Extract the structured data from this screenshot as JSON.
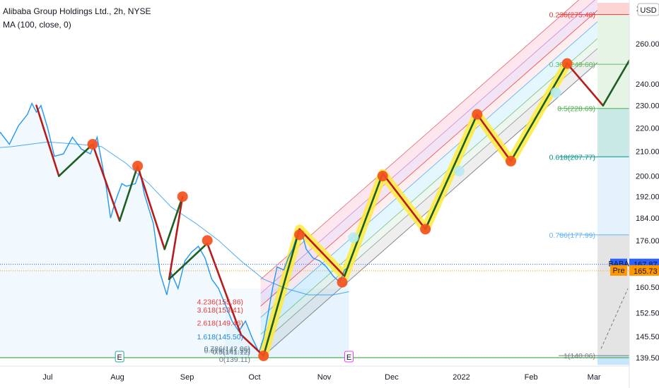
{
  "header": {
    "symbol_line": "Alibaba Group Holdings Ltd., 2h, NYSE",
    "indicator_line": "MA (100, close, 0)"
  },
  "currency_badge": "USD",
  "colors": {
    "price_line": "#2196f3",
    "ma_line": "#2196f3",
    "impulse_up": "#1b5e20",
    "impulse_down": "#b71c1c",
    "pivot_marker": "#f4511e",
    "highlight": "#ffeb3b",
    "last_price_bg": "#2962ff",
    "premarket_bg": "#ff9800",
    "baseline": "#4caf50"
  },
  "chart_data": {
    "type": "line",
    "title": "Alibaba Group Holdings Ltd., 2h, NYSE",
    "y_scale": "log",
    "ylim": [
      137.5,
      282
    ],
    "x_ticks": [
      "Jul",
      "Aug",
      "Sep",
      "Oct",
      "Nov",
      "Dec",
      "2022",
      "Feb",
      "Mar"
    ],
    "y_ticks": [
      139.5,
      145.5,
      152.5,
      160.5,
      168.0,
      176.0,
      184.0,
      192.0,
      200.0,
      210.0,
      220.0,
      230.0,
      240.0,
      260.0
    ],
    "price_series": [
      {
        "d": "2021-06-01",
        "v": 216
      },
      {
        "d": "2021-06-05",
        "v": 214
      },
      {
        "d": "2021-06-10",
        "v": 218
      },
      {
        "d": "2021-06-14",
        "v": 213
      },
      {
        "d": "2021-06-18",
        "v": 221
      },
      {
        "d": "2021-06-22",
        "v": 226
      },
      {
        "d": "2021-06-24",
        "v": 231
      },
      {
        "d": "2021-06-26",
        "v": 227
      },
      {
        "d": "2021-06-28",
        "v": 230
      },
      {
        "d": "2021-07-01",
        "v": 220
      },
      {
        "d": "2021-07-04",
        "v": 208
      },
      {
        "d": "2021-07-08",
        "v": 209
      },
      {
        "d": "2021-07-12",
        "v": 216
      },
      {
        "d": "2021-07-16",
        "v": 211
      },
      {
        "d": "2021-07-20",
        "v": 209
      },
      {
        "d": "2021-07-23",
        "v": 216
      },
      {
        "d": "2021-07-27",
        "v": 196
      },
      {
        "d": "2021-07-29",
        "v": 184
      },
      {
        "d": "2021-07-31",
        "v": 190
      },
      {
        "d": "2021-08-03",
        "v": 197
      },
      {
        "d": "2021-08-05",
        "v": 196
      },
      {
        "d": "2021-08-09",
        "v": 197
      },
      {
        "d": "2021-08-11",
        "v": 202
      },
      {
        "d": "2021-08-13",
        "v": 193
      },
      {
        "d": "2021-08-17",
        "v": 182
      },
      {
        "d": "2021-08-20",
        "v": 165
      },
      {
        "d": "2021-08-23",
        "v": 158
      },
      {
        "d": "2021-08-25",
        "v": 165
      },
      {
        "d": "2021-08-28",
        "v": 160
      },
      {
        "d": "2021-08-31",
        "v": 169
      },
      {
        "d": "2021-09-03",
        "v": 172
      },
      {
        "d": "2021-09-06",
        "v": 174
      },
      {
        "d": "2021-09-09",
        "v": 170
      },
      {
        "d": "2021-09-12",
        "v": 163
      },
      {
        "d": "2021-09-15",
        "v": 160
      },
      {
        "d": "2021-09-18",
        "v": 155
      },
      {
        "d": "2021-09-21",
        "v": 150
      },
      {
        "d": "2021-09-24",
        "v": 147
      },
      {
        "d": "2021-09-27",
        "v": 150
      },
      {
        "d": "2021-09-30",
        "v": 145
      },
      {
        "d": "2021-10-03",
        "v": 141
      },
      {
        "d": "2021-10-05",
        "v": 145
      },
      {
        "d": "2021-10-07",
        "v": 152
      },
      {
        "d": "2021-10-09",
        "v": 160
      },
      {
        "d": "2021-10-11",
        "v": 167
      },
      {
        "d": "2021-10-14",
        "v": 166
      },
      {
        "d": "2021-10-16",
        "v": 170
      },
      {
        "d": "2021-10-18",
        "v": 173
      },
      {
        "d": "2021-10-20",
        "v": 178
      },
      {
        "d": "2021-10-22",
        "v": 179
      },
      {
        "d": "2021-10-24",
        "v": 173
      },
      {
        "d": "2021-10-27",
        "v": 170
      },
      {
        "d": "2021-10-30",
        "v": 169
      },
      {
        "d": "2021-11-02",
        "v": 167
      },
      {
        "d": "2021-11-05",
        "v": 164
      },
      {
        "d": "2021-11-08",
        "v": 162
      },
      {
        "d": "2021-11-10",
        "v": 166
      },
      {
        "d": "2021-11-12",
        "v": 167
      }
    ],
    "ma_series": [
      {
        "d": "2021-06-01",
        "v": 211
      },
      {
        "d": "2021-06-15",
        "v": 212
      },
      {
        "d": "2021-07-01",
        "v": 214
      },
      {
        "d": "2021-07-15",
        "v": 213
      },
      {
        "d": "2021-07-25",
        "v": 212
      },
      {
        "d": "2021-08-05",
        "v": 205
      },
      {
        "d": "2021-08-15",
        "v": 197
      },
      {
        "d": "2021-08-25",
        "v": 188
      },
      {
        "d": "2021-09-05",
        "v": 182
      },
      {
        "d": "2021-09-15",
        "v": 176
      },
      {
        "d": "2021-09-25",
        "v": 169
      },
      {
        "d": "2021-10-05",
        "v": 163
      },
      {
        "d": "2021-10-15",
        "v": 160
      },
      {
        "d": "2021-10-25",
        "v": 158
      },
      {
        "d": "2021-11-05",
        "v": 158
      },
      {
        "d": "2021-11-12",
        "v": 159
      }
    ],
    "wave_path": [
      {
        "d": "2021-06-26",
        "v": 230
      },
      {
        "d": "2021-07-06",
        "v": 200
      },
      {
        "d": "2021-07-21",
        "v": 213
      },
      {
        "d": "2021-08-02",
        "v": 183
      },
      {
        "d": "2021-08-10",
        "v": 204
      },
      {
        "d": "2021-08-22",
        "v": 173
      },
      {
        "d": "2021-08-30",
        "v": 192
      },
      {
        "d": "2021-08-24",
        "v": 163
      },
      {
        "d": "2021-09-10",
        "v": 175
      },
      {
        "d": "2021-09-25",
        "v": 146
      },
      {
        "d": "2021-10-05",
        "v": 140
      },
      {
        "d": "2021-10-21",
        "v": 180
      },
      {
        "d": "2021-11-10",
        "v": 164
      },
      {
        "d": "2021-11-27",
        "v": 201
      },
      {
        "d": "2021-12-16",
        "v": 180
      },
      {
        "d": "2022-01-08",
        "v": 226
      },
      {
        "d": "2022-01-23",
        "v": 206
      },
      {
        "d": "2022-02-17",
        "v": 250
      },
      {
        "d": "2022-03-05",
        "v": 230
      },
      {
        "d": "2022-03-22",
        "v": 262
      }
    ],
    "pivots": [
      {
        "d": "2021-07-21",
        "v": 213
      },
      {
        "d": "2021-08-10",
        "v": 204
      },
      {
        "d": "2021-08-30",
        "v": 192
      },
      {
        "d": "2021-09-10",
        "v": 176
      },
      {
        "d": "2021-10-05",
        "v": 140
      },
      {
        "d": "2021-10-21",
        "v": 178
      },
      {
        "d": "2021-11-09",
        "v": 162
      },
      {
        "d": "2021-11-27",
        "v": 200
      },
      {
        "d": "2021-12-16",
        "v": 180
      },
      {
        "d": "2022-01-08",
        "v": 226
      },
      {
        "d": "2022-01-23",
        "v": 206
      },
      {
        "d": "2022-02-17",
        "v": 250
      }
    ],
    "hollow_pivots": [
      {
        "d": "2021-11-14",
        "v": 177
      },
      {
        "d": "2021-12-31",
        "v": 202
      },
      {
        "d": "2022-02-12",
        "v": 236
      }
    ],
    "fib_ext_labels": [
      {
        "text": "4.236(155.86)",
        "v": 155.86
      },
      {
        "text": "3.618(153.41)",
        "v": 153.41
      },
      {
        "text": "2.618(149.46)",
        "v": 149.46
      },
      {
        "text": "1.618(145.50)",
        "v": 145.5
      },
      {
        "text": "0.786(142.06)",
        "v": 142.06
      },
      {
        "text": "0.618(141.59)",
        "v": 141.59
      },
      {
        "text": "0.5(141.12)",
        "v": 141.12
      },
      {
        "text": "0(139.11)",
        "v": 139.11
      }
    ],
    "fib_ret_levels": [
      {
        "text": "0.236(275.48)",
        "v": 275.48,
        "color": "#e53935"
      },
      {
        "text": "0.382(249.60)",
        "v": 249.6,
        "color": "#66bb6a"
      },
      {
        "text": "0.5(228.69)",
        "v": 228.69,
        "color": "#4caf50"
      },
      {
        "text": "0.618(207.77)",
        "v": 207.77,
        "color": "#009688"
      },
      {
        "text": "0.786(177.99)",
        "v": 177.99,
        "color": "#64b5f6"
      },
      {
        "text": "1(140.06)",
        "v": 140.06,
        "color": "#787b86"
      }
    ],
    "last_price": {
      "label": "BABA",
      "value": "167.87",
      "v": 167.87
    },
    "premarket": {
      "label": "Pre",
      "value": "165.73",
      "v": 165.73
    },
    "scale_top_label": "2",
    "event_markers": [
      {
        "d": "2021-08-02",
        "text": "E"
      },
      {
        "d": "2021-11-12",
        "text": "E"
      }
    ]
  }
}
